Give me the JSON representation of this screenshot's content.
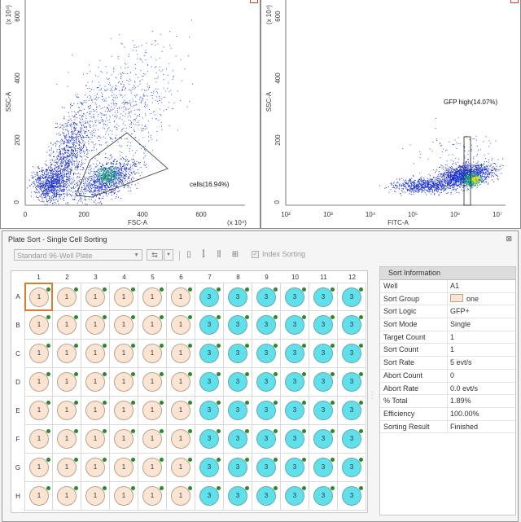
{
  "plots": {
    "left": {
      "x_label": "FSC-A",
      "y_label": "SSC-A",
      "x_scale": "(x 10⁴)",
      "y_scale": "(x 10⁴)",
      "x_ticks": [
        "0",
        "200",
        "400",
        "600"
      ],
      "y_ticks": [
        "0",
        "200",
        "400",
        "600"
      ],
      "gate_label": "cells(16.94%)",
      "color": "#1a2fd0"
    },
    "right": {
      "x_label": "FITC-A",
      "y_label": "SSC-A",
      "y_scale": "(x 10⁴)",
      "x_ticks": [
        "10²",
        "10³",
        "10⁴",
        "10⁵",
        "10⁶",
        "10⁷"
      ],
      "y_ticks": [
        "0",
        "200",
        "400",
        "600"
      ],
      "gate_label": "GFP high(14.07%)"
    }
  },
  "dialog": {
    "title": "Plate Sort - Single Cell Sorting",
    "close_glyph": "⊠",
    "plate_type": "Standard 96-Well Plate",
    "index_sorting_label": "Index Sorting",
    "columns": [
      "1",
      "2",
      "3",
      "4",
      "5",
      "6",
      "7",
      "8",
      "9",
      "10",
      "11",
      "12"
    ],
    "rows": [
      "A",
      "B",
      "C",
      "D",
      "E",
      "F",
      "G",
      "H"
    ],
    "well_colors": {
      "one": "#fbe4d2",
      "three": "#5fe0ea"
    },
    "marker_color": "#2a8a2a",
    "selected_well": "A1",
    "info_header": "Sort Information",
    "info": [
      {
        "key": "Well",
        "value": "A1"
      },
      {
        "key": "Sort Group",
        "value": "one"
      },
      {
        "key": "Sort Logic",
        "value": "GFP+"
      },
      {
        "key": "Sort Mode",
        "value": "Single"
      },
      {
        "key": "Target Count",
        "value": "1"
      },
      {
        "key": "Sort Count",
        "value": "1"
      },
      {
        "key": "Sort Rate",
        "value": "5 evt/s"
      },
      {
        "key": "Abort Count",
        "value": "0"
      },
      {
        "key": "Abort Rate",
        "value": "0.0 evt/s"
      },
      {
        "key": "% Total",
        "value": "1.89%"
      },
      {
        "key": "Efficiency",
        "value": "100.00%"
      },
      {
        "key": "Sorting Result",
        "value": "Finished"
      }
    ]
  }
}
